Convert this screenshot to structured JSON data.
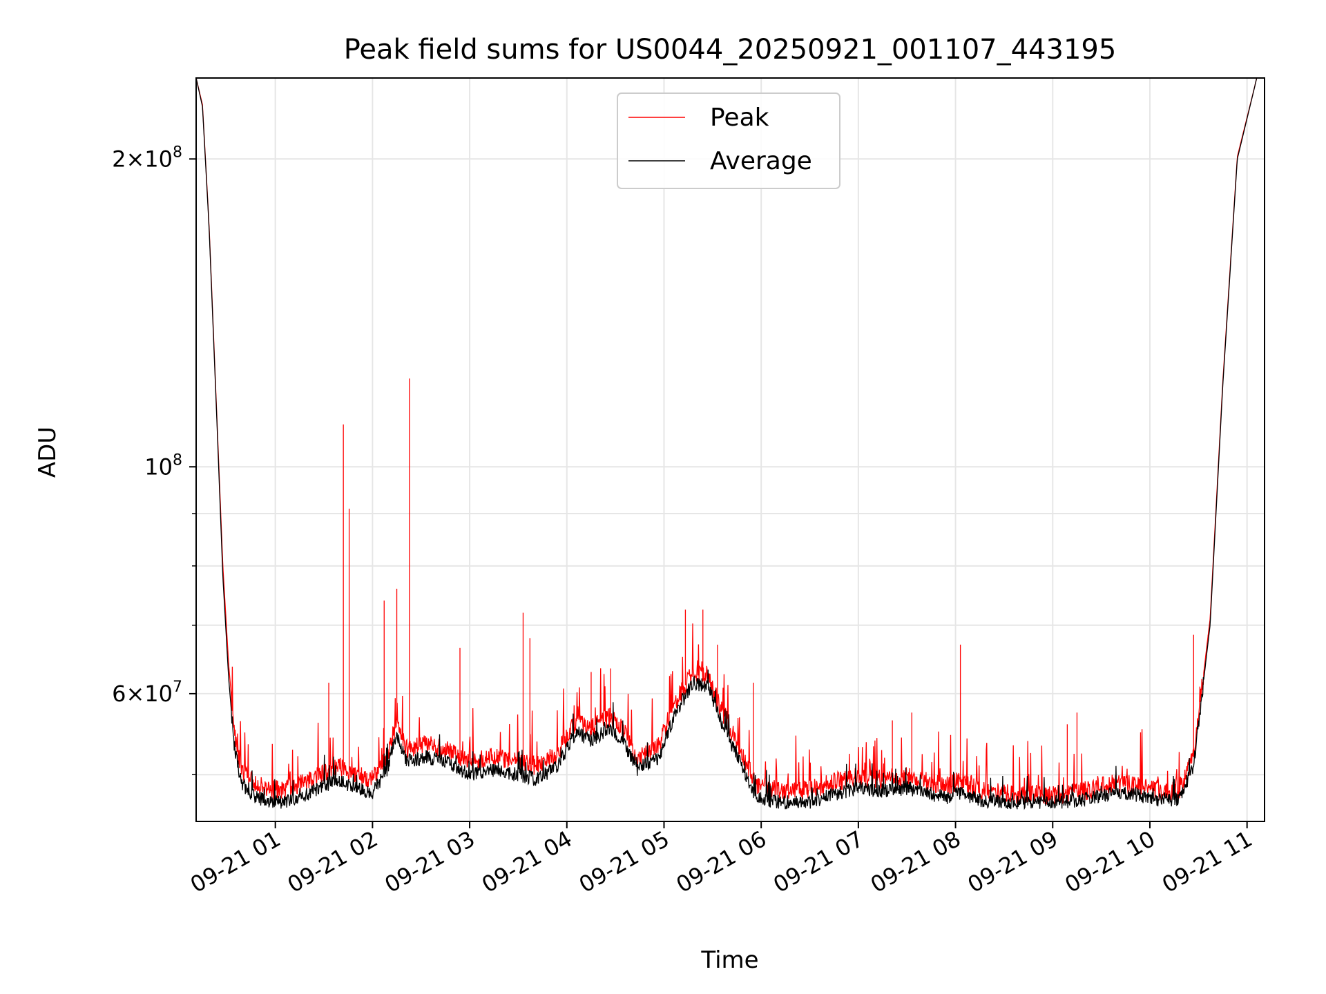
{
  "chart_data": {
    "type": "line",
    "title": "Peak field sums for US0044_20250921_001107_443195",
    "xlabel": "Time",
    "ylabel": "ADU",
    "yscale": "log",
    "xlim_hours": [
      0.185,
      11.18
    ],
    "ylim": [
      45000000,
      240000000
    ],
    "grid": true,
    "legend_position": "upper center",
    "x_ticks": [
      {
        "hour": 1,
        "label": "09-21 01"
      },
      {
        "hour": 2,
        "label": "09-21 02"
      },
      {
        "hour": 3,
        "label": "09-21 03"
      },
      {
        "hour": 4,
        "label": "09-21 04"
      },
      {
        "hour": 5,
        "label": "09-21 05"
      },
      {
        "hour": 6,
        "label": "09-21 06"
      },
      {
        "hour": 7,
        "label": "09-21 07"
      },
      {
        "hour": 8,
        "label": "09-21 08"
      },
      {
        "hour": 9,
        "label": "09-21 09"
      },
      {
        "hour": 10,
        "label": "09-21 10"
      },
      {
        "hour": 11,
        "label": "09-21 11"
      }
    ],
    "y_ticks_major": [
      {
        "value": 60000000,
        "mant": "6",
        "exp": "7"
      },
      {
        "value": 100000000,
        "mant": "",
        "exp": "8"
      },
      {
        "value": 200000000,
        "mant": "2",
        "exp": "8"
      }
    ],
    "y_ticks_minor": [
      50000000,
      70000000,
      80000000,
      90000000
    ],
    "series": [
      {
        "name": "Average",
        "color": "#000000",
        "points_hours_value": [
          [
            0.185,
            240000000
          ],
          [
            0.25,
            225000000
          ],
          [
            0.32,
            170000000
          ],
          [
            0.4,
            110000000
          ],
          [
            0.46,
            78000000
          ],
          [
            0.52,
            62000000
          ],
          [
            0.58,
            53000000
          ],
          [
            0.65,
            49000000
          ],
          [
            0.8,
            47500000
          ],
          [
            1.0,
            47000000
          ],
          [
            1.2,
            47200000
          ],
          [
            1.45,
            48500000
          ],
          [
            1.65,
            49500000
          ],
          [
            1.8,
            48500000
          ],
          [
            2.0,
            48000000
          ],
          [
            2.15,
            50500000
          ],
          [
            2.25,
            55000000
          ],
          [
            2.35,
            51500000
          ],
          [
            2.55,
            52000000
          ],
          [
            2.75,
            51500000
          ],
          [
            3.0,
            50000000
          ],
          [
            3.2,
            50500000
          ],
          [
            3.5,
            50000000
          ],
          [
            3.7,
            49500000
          ],
          [
            3.9,
            51000000
          ],
          [
            4.1,
            55000000
          ],
          [
            4.25,
            54000000
          ],
          [
            4.45,
            55500000
          ],
          [
            4.6,
            53500000
          ],
          [
            4.72,
            50500000
          ],
          [
            4.85,
            51500000
          ],
          [
            4.95,
            52000000
          ],
          [
            5.1,
            57000000
          ],
          [
            5.3,
            61500000
          ],
          [
            5.45,
            61000000
          ],
          [
            5.6,
            56000000
          ],
          [
            5.8,
            51000000
          ],
          [
            5.95,
            47500000
          ],
          [
            6.2,
            47000000
          ],
          [
            6.5,
            47000000
          ],
          [
            6.8,
            48000000
          ],
          [
            7.0,
            48500000
          ],
          [
            7.2,
            48200000
          ],
          [
            7.5,
            48500000
          ],
          [
            7.7,
            48000000
          ],
          [
            7.9,
            47500000
          ],
          [
            8.05,
            48000000
          ],
          [
            8.25,
            47200000
          ],
          [
            8.6,
            47000000
          ],
          [
            9.0,
            47000000
          ],
          [
            9.3,
            47200000
          ],
          [
            9.6,
            48000000
          ],
          [
            9.85,
            47800000
          ],
          [
            10.1,
            47200000
          ],
          [
            10.3,
            47300000
          ],
          [
            10.45,
            51000000
          ],
          [
            10.62,
            70000000
          ],
          [
            10.75,
            120000000
          ],
          [
            10.9,
            200000000
          ],
          [
            11.1,
            240000000
          ]
        ]
      },
      {
        "name": "Peak",
        "color": "#ff0000",
        "points_hours_value": [
          [
            0.185,
            240000000
          ],
          [
            0.25,
            226000000
          ],
          [
            0.32,
            171000000
          ],
          [
            0.4,
            111000000
          ],
          [
            0.46,
            80000000
          ],
          [
            0.52,
            64000000
          ],
          [
            0.58,
            55000000
          ],
          [
            0.65,
            50500000
          ],
          [
            0.8,
            48800000
          ],
          [
            1.0,
            48300000
          ],
          [
            1.2,
            48600000
          ],
          [
            1.45,
            50000000
          ],
          [
            1.65,
            51000000
          ],
          [
            1.8,
            50000000
          ],
          [
            2.0,
            49500000
          ],
          [
            2.15,
            52000000
          ],
          [
            2.25,
            56500000
          ],
          [
            2.35,
            53000000
          ],
          [
            2.55,
            53500000
          ],
          [
            2.75,
            53000000
          ],
          [
            3.0,
            51500000
          ],
          [
            3.2,
            52000000
          ],
          [
            3.5,
            51500000
          ],
          [
            3.7,
            51000000
          ],
          [
            3.9,
            52500000
          ],
          [
            4.1,
            56500000
          ],
          [
            4.25,
            55500000
          ],
          [
            4.45,
            57000000
          ],
          [
            4.6,
            55000000
          ],
          [
            4.72,
            51500000
          ],
          [
            4.85,
            52800000
          ],
          [
            4.95,
            53500000
          ],
          [
            5.1,
            58500000
          ],
          [
            5.3,
            63000000
          ],
          [
            5.45,
            62500000
          ],
          [
            5.6,
            57500000
          ],
          [
            5.8,
            52500000
          ],
          [
            5.95,
            48800000
          ],
          [
            6.2,
            48300000
          ],
          [
            6.5,
            48300000
          ],
          [
            6.8,
            49300000
          ],
          [
            7.0,
            49800000
          ],
          [
            7.2,
            49500000
          ],
          [
            7.5,
            49800000
          ],
          [
            7.7,
            49300000
          ],
          [
            7.9,
            48800000
          ],
          [
            8.05,
            49300000
          ],
          [
            8.25,
            48300000
          ],
          [
            8.6,
            47800000
          ],
          [
            9.0,
            47800000
          ],
          [
            9.3,
            48100000
          ],
          [
            9.6,
            49000000
          ],
          [
            9.85,
            48800000
          ],
          [
            10.1,
            48200000
          ],
          [
            10.3,
            48300000
          ],
          [
            10.45,
            52000000
          ],
          [
            10.62,
            71000000
          ],
          [
            10.75,
            121000000
          ],
          [
            10.9,
            201000000
          ],
          [
            11.1,
            240000000
          ]
        ],
        "spikes_hours_value": [
          [
            1.7,
            110000000
          ],
          [
            1.76,
            91000000
          ],
          [
            2.25,
            76000000
          ],
          [
            2.38,
            122000000
          ],
          [
            2.12,
            74000000
          ],
          [
            3.55,
            72000000
          ],
          [
            3.62,
            68000000
          ],
          [
            4.25,
            63000000
          ],
          [
            4.45,
            63500000
          ],
          [
            5.22,
            72500000
          ],
          [
            5.4,
            72500000
          ],
          [
            5.55,
            67000000
          ],
          [
            5.92,
            61500000
          ],
          [
            8.05,
            67000000
          ],
          [
            9.15,
            56000000
          ],
          [
            9.25,
            57500000
          ],
          [
            10.45,
            68500000
          ],
          [
            10.6,
            67500000
          ],
          [
            1.55,
            61500000
          ],
          [
            2.9,
            66500000
          ],
          [
            7.35,
            56500000
          ],
          [
            7.55,
            57500000
          ]
        ]
      }
    ],
    "legend": [
      {
        "label": "Peak",
        "color": "#ff0000"
      },
      {
        "label": "Average",
        "color": "#000000"
      }
    ]
  }
}
